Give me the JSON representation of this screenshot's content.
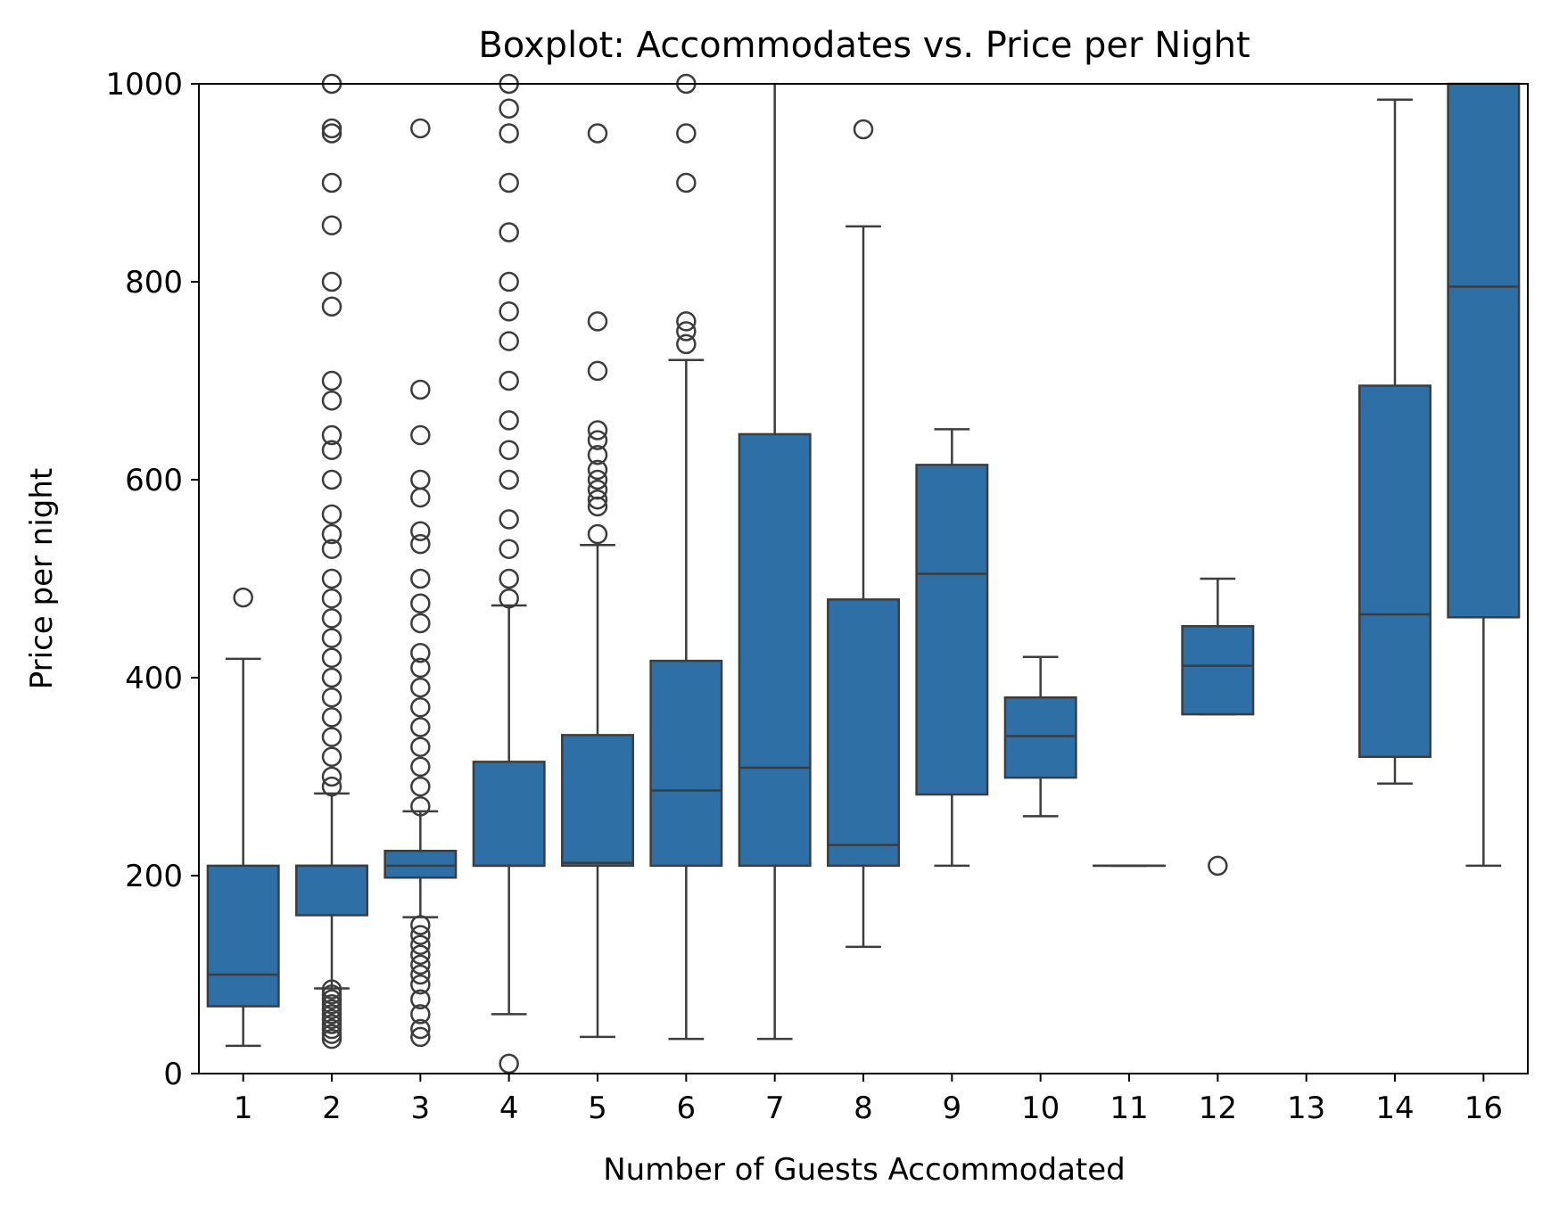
{
  "chart_data": {
    "type": "boxplot",
    "title": "Boxplot: Accommodates vs. Price per Night",
    "xlabel": "Number of Guests Accommodated",
    "ylabel": "Price per night",
    "ylim": [
      0,
      1000
    ],
    "yticks": [
      0,
      200,
      400,
      600,
      800,
      1000
    ],
    "grid": false,
    "box_color": "#2e6fa6",
    "line_color": "#3d3d3d",
    "categories": [
      "1",
      "2",
      "3",
      "4",
      "5",
      "6",
      "7",
      "8",
      "9",
      "10",
      "11",
      "12",
      "13",
      "14",
      "16"
    ],
    "boxes": [
      {
        "category": "1",
        "whisker_low": 28,
        "q1": 68,
        "median": 100,
        "q3": 210,
        "whisker_high": 419,
        "outliers": [
          481
        ]
      },
      {
        "category": "2",
        "whisker_low": 86,
        "q1": 160,
        "median": 210,
        "q3": 210,
        "whisker_high": 283,
        "outliers": [
          35,
          40,
          45,
          50,
          55,
          60,
          65,
          70,
          75,
          80,
          85,
          290,
          300,
          320,
          340,
          360,
          380,
          400,
          420,
          440,
          460,
          480,
          500,
          530,
          545,
          565,
          600,
          630,
          645,
          680,
          700,
          775,
          800,
          857,
          900,
          950,
          955,
          1000
        ]
      },
      {
        "category": "3",
        "whisker_low": 158,
        "q1": 198,
        "median": 210,
        "q3": 225,
        "whisker_high": 265,
        "outliers": [
          37,
          45,
          60,
          75,
          90,
          100,
          110,
          120,
          130,
          140,
          150,
          270,
          290,
          310,
          330,
          350,
          370,
          390,
          410,
          425,
          455,
          475,
          500,
          535,
          548,
          582,
          600,
          645,
          691,
          955
        ]
      },
      {
        "category": "4",
        "whisker_low": 60,
        "q1": 210,
        "median": 210,
        "q3": 315,
        "whisker_high": 473,
        "outliers": [
          10,
          480,
          500,
          530,
          560,
          600,
          630,
          660,
          700,
          740,
          770,
          800,
          850,
          900,
          950,
          975,
          1000
        ]
      },
      {
        "category": "5",
        "whisker_low": 37,
        "q1": 210,
        "median": 213,
        "q3": 342,
        "whisker_high": 534,
        "outliers": [
          545,
          573,
          580,
          590,
          600,
          610,
          625,
          640,
          650,
          710,
          760,
          950
        ]
      },
      {
        "category": "6",
        "whisker_low": 35,
        "q1": 210,
        "median": 286,
        "q3": 417,
        "whisker_high": 721,
        "outliers": [
          737,
          750,
          760,
          900,
          950,
          1000
        ]
      },
      {
        "category": "7",
        "whisker_low": 35,
        "q1": 210,
        "median": 309,
        "q3": 646,
        "whisker_high": 1000,
        "outliers": []
      },
      {
        "category": "8",
        "whisker_low": 128,
        "q1": 210,
        "median": 231,
        "q3": 479,
        "whisker_high": 856,
        "outliers": [
          954
        ]
      },
      {
        "category": "9",
        "whisker_low": 210,
        "q1": 282,
        "median": 505,
        "q3": 615,
        "whisker_high": 651,
        "outliers": []
      },
      {
        "category": "10",
        "whisker_low": 260,
        "q1": 299,
        "median": 341,
        "q3": 380,
        "whisker_high": 421,
        "outliers": []
      },
      {
        "category": "11",
        "whisker_low": 210,
        "q1": 210,
        "median": 210,
        "q3": 210,
        "whisker_high": 210,
        "outliers": []
      },
      {
        "category": "12",
        "whisker_low": 363,
        "q1": 363,
        "median": 412,
        "q3": 452,
        "whisker_high": 500,
        "outliers": [
          210
        ]
      },
      {
        "category": "13",
        "whisker_low": null,
        "q1": null,
        "median": null,
        "q3": null,
        "whisker_high": null,
        "outliers": []
      },
      {
        "category": "14",
        "whisker_low": 293,
        "q1": 320,
        "median": 464,
        "q3": 695,
        "whisker_high": 984,
        "outliers": []
      },
      {
        "category": "16",
        "whisker_low": 210,
        "q1": 461,
        "median": 795,
        "q3": 1000,
        "whisker_high": 1000,
        "outliers": []
      }
    ]
  }
}
